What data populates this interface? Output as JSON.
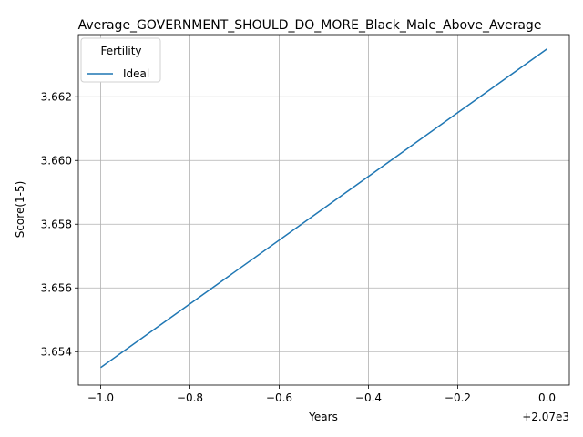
{
  "chart_data": {
    "type": "line",
    "title": "Average_GOVERNMENT_SHOULD_DO_MORE_Black_Male_Above_Average",
    "xlabel": "Years",
    "ylabel": "Score(1-5)",
    "x_offset_label": "+2.07e3",
    "x": [
      2069,
      2070
    ],
    "xlim": [
      2068.95,
      2070.05
    ],
    "ylim": [
      3.65295,
      3.66395
    ],
    "x_ticks": [
      2069,
      2069.2,
      2069.4,
      2069.6,
      2069.8,
      2070
    ],
    "x_tick_labels": [
      "−1.0",
      "−0.8",
      "−0.6",
      "−0.4",
      "−0.2",
      "0.0"
    ],
    "y_ticks": [
      3.654,
      3.656,
      3.658,
      3.66,
      3.662
    ],
    "y_tick_labels": [
      "3.654",
      "3.656",
      "3.658",
      "3.660",
      "3.662"
    ],
    "grid": true,
    "legend": {
      "title": "Fertility",
      "placement": "top-left"
    },
    "series": [
      {
        "name": "Ideal",
        "color": "#1f77b4",
        "values": [
          3.6535,
          3.6635
        ]
      }
    ]
  }
}
